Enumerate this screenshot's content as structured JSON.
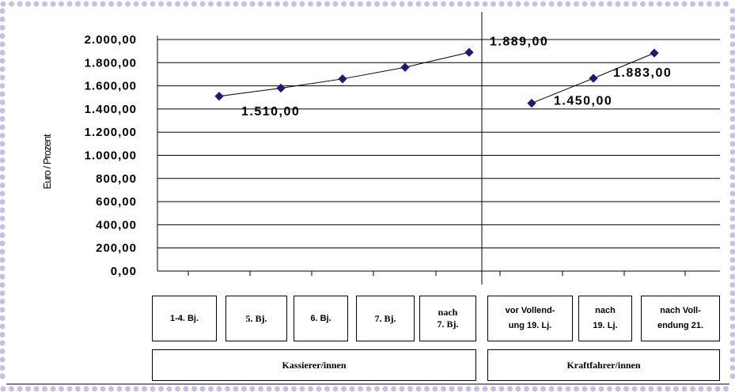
{
  "colors": {
    "border_dots": "#c9bfe6",
    "marker": "#1a1a7e",
    "line": "#000000"
  },
  "chart_data": {
    "type": "line",
    "ylabel": "Euro / Prozent",
    "ylim": [
      0,
      2000
    ],
    "y_ticks": [
      "2.000,00",
      "1.800,00",
      "1.600,00",
      "1.400,00",
      "1.200,00",
      "1.000,00",
      "800,00",
      "600,00",
      "400,00",
      "200,00",
      "0,00"
    ],
    "grid": true,
    "groups": [
      {
        "name": "Kassierer/innen",
        "categories": [
          "1-4. Bj.",
          "5. Bj.",
          "6. Bj.",
          "7. Bj.",
          "nach\n7. Bj."
        ],
        "values": [
          1510,
          1580,
          1660,
          1760,
          1889
        ]
      },
      {
        "name": "Kraftfahrer/innen",
        "categories": [
          "vor Vollend-\nung 19. Lj.",
          "nach\n19. Lj.",
          "nach Voll-\nendung 21."
        ],
        "values": [
          1450,
          1665,
          1883
        ]
      }
    ],
    "data_labels": [
      {
        "group": 0,
        "index": 0,
        "text": "1.510,00"
      },
      {
        "group": 0,
        "index": 4,
        "text": "1.889,00"
      },
      {
        "group": 1,
        "index": 0,
        "text": "1.450,00"
      },
      {
        "group": 1,
        "index": 2,
        "text": "1.883,00"
      }
    ]
  }
}
